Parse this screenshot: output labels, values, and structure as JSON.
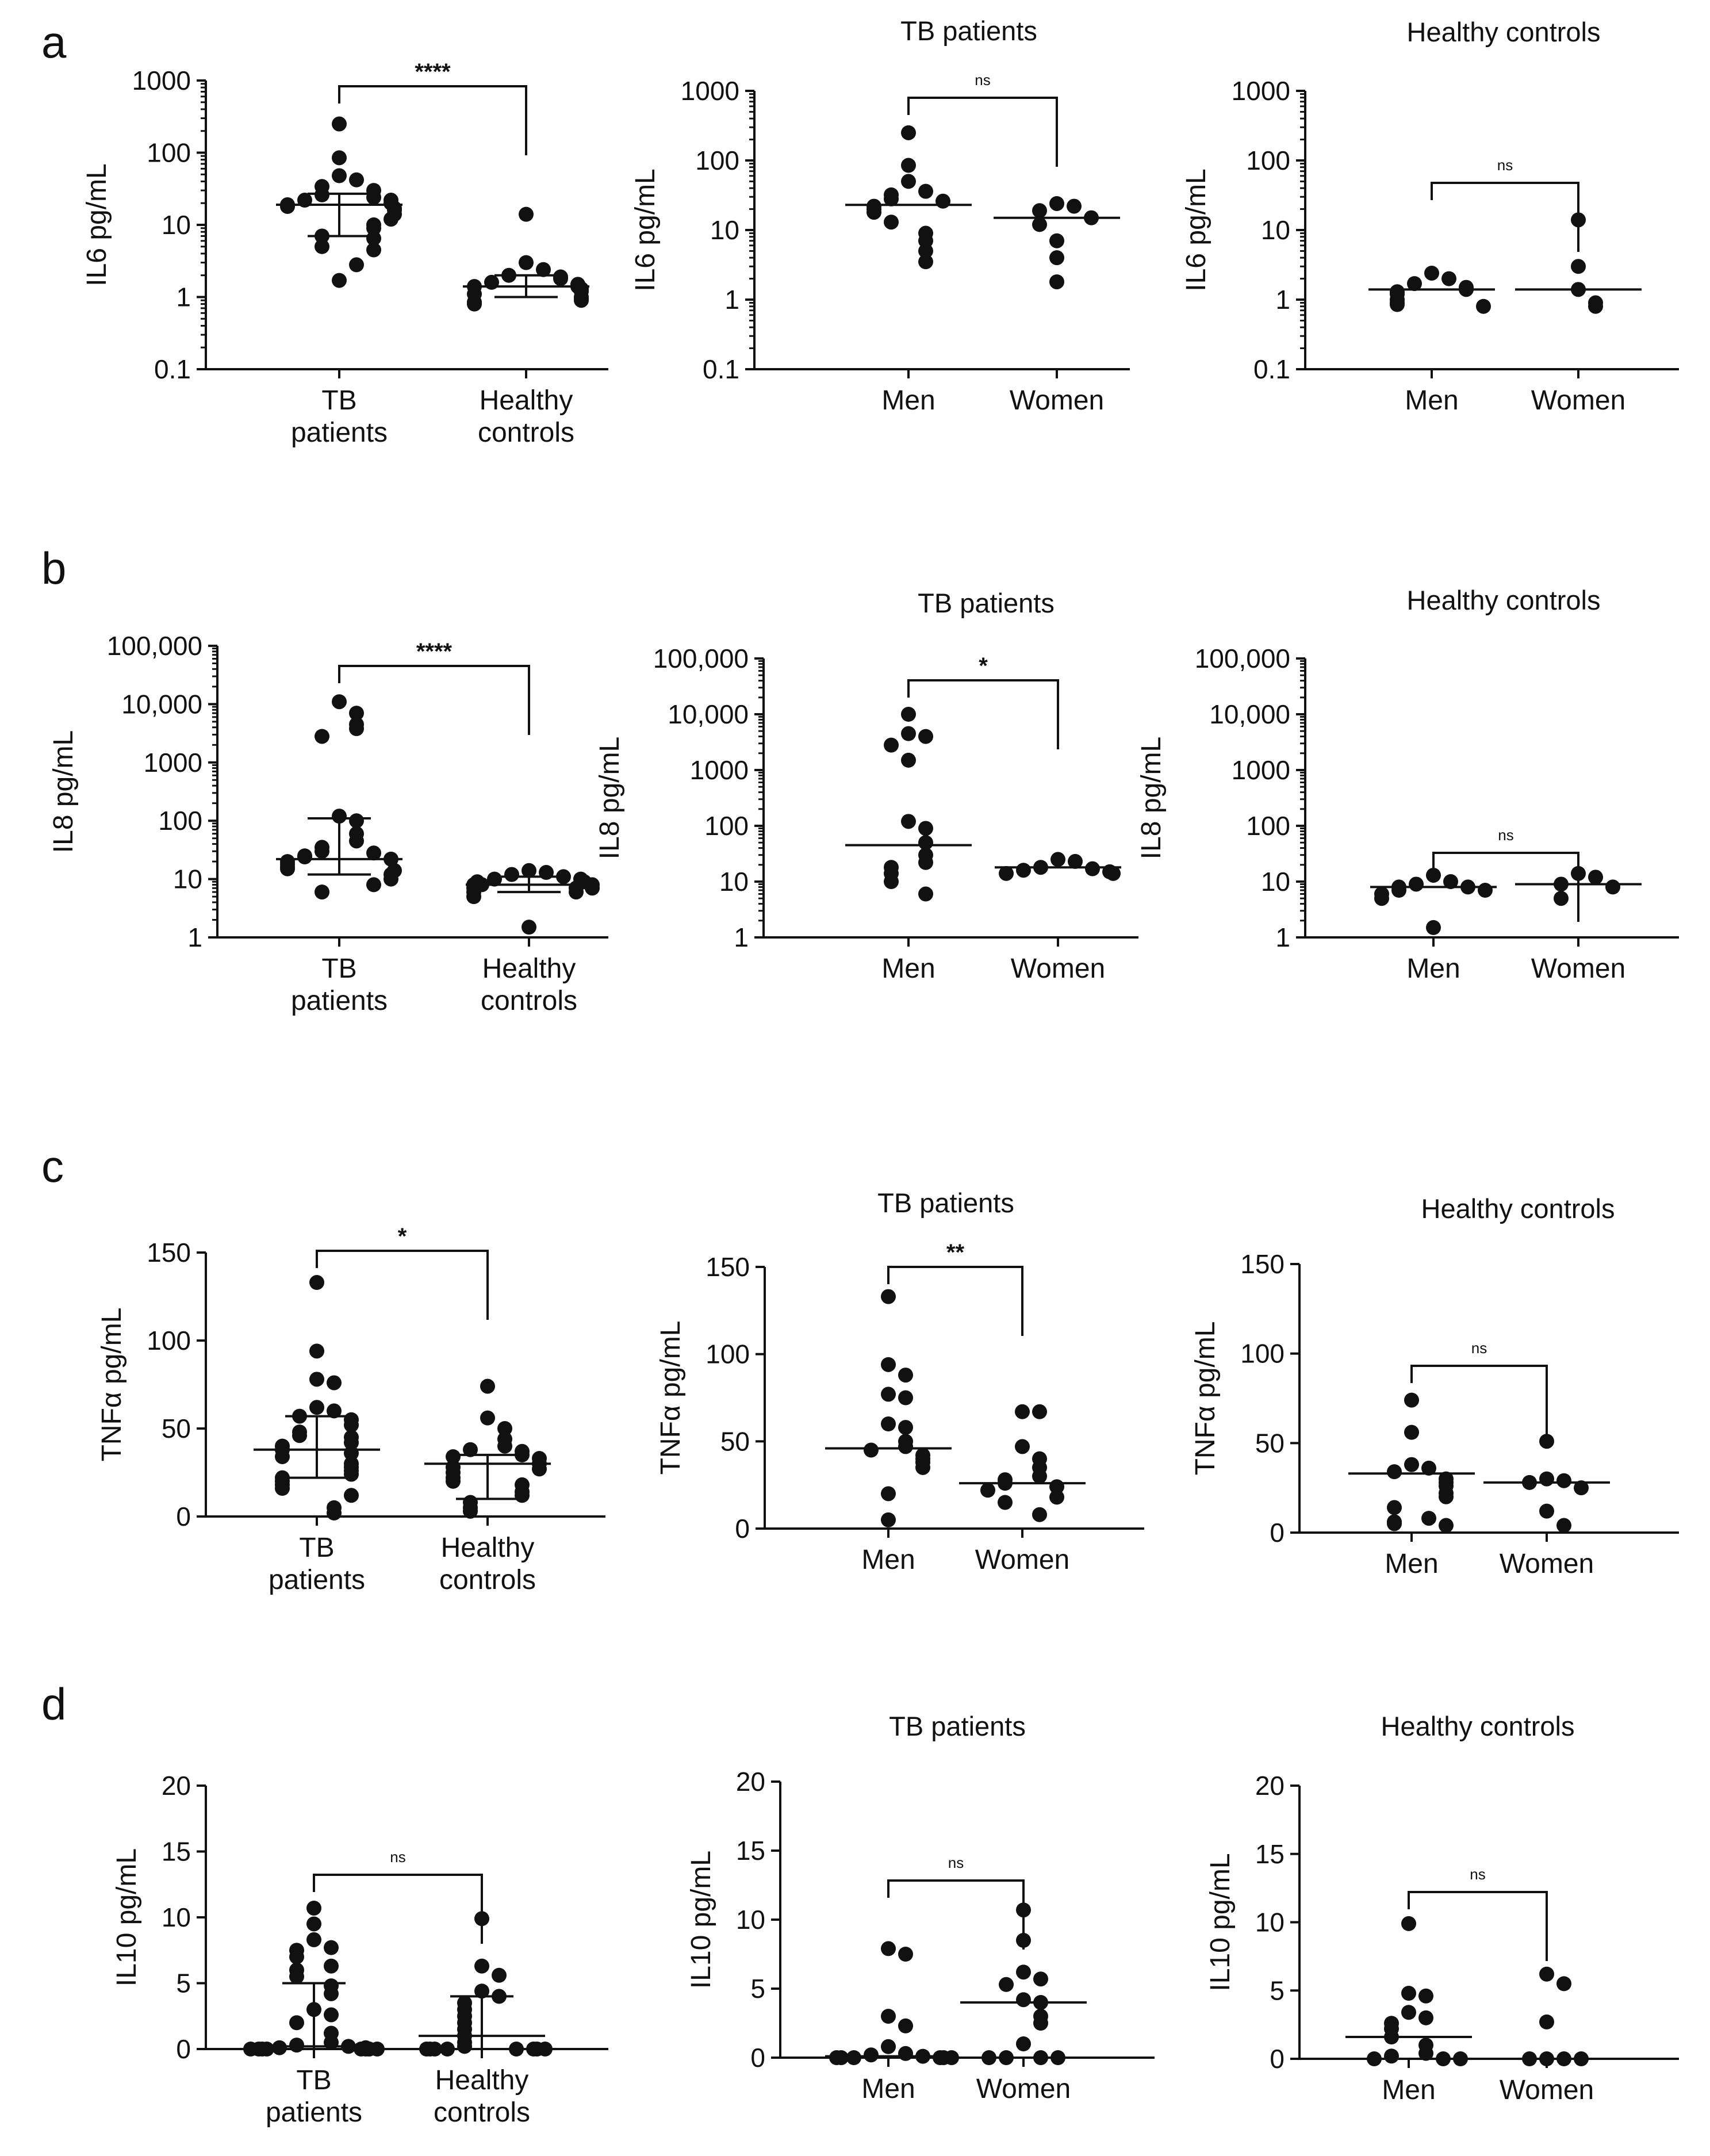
{
  "figure": {
    "background": "#ffffff",
    "ink": "#111111"
  },
  "chart_data": [
    {
      "id": "a1",
      "panel_letter": "a",
      "type": "scatter",
      "title": "",
      "ylabel": "IL6 pg/mL",
      "scale": "log",
      "ylim": [
        0.1,
        1000
      ],
      "yticks": [
        {
          "value": 0.1,
          "label": "0.1"
        },
        {
          "value": 1,
          "label": "1"
        },
        {
          "value": 10,
          "label": "10"
        },
        {
          "value": 100,
          "label": "100"
        },
        {
          "value": 1000,
          "label": "1000"
        }
      ],
      "categories": [
        [
          "TB",
          "patients"
        ],
        [
          "Healthy",
          "controls"
        ]
      ],
      "groups": [
        {
          "values": [
            250,
            85,
            48,
            42,
            34,
            30,
            26,
            24,
            22,
            22,
            20,
            19,
            18,
            17,
            16,
            14,
            12,
            10,
            9,
            7,
            6.5,
            5,
            4.5,
            2.8,
            1.7
          ],
          "median": 19,
          "iqr": [
            7,
            27
          ]
        },
        {
          "values": [
            14,
            3.0,
            2.4,
            2.0,
            1.9,
            1.8,
            1.6,
            1.5,
            1.4,
            1.4,
            1.3,
            1.2,
            1.1,
            1.0,
            0.95,
            0.9,
            0.85,
            0.8
          ],
          "median": 1.4,
          "iqr": [
            1.0,
            2.0
          ]
        }
      ],
      "significance": "****"
    },
    {
      "id": "a2",
      "panel_letter": "",
      "type": "scatter",
      "title": "TB patients",
      "ylabel": "IL6 pg/mL",
      "scale": "log",
      "ylim": [
        0.1,
        1000
      ],
      "yticks": [
        {
          "value": 0.1,
          "label": "0.1"
        },
        {
          "value": 1,
          "label": "1"
        },
        {
          "value": 10,
          "label": "10"
        },
        {
          "value": 100,
          "label": "100"
        },
        {
          "value": 1000,
          "label": "1000"
        }
      ],
      "categories": [
        [
          "Men"
        ],
        [
          "Women"
        ]
      ],
      "groups": [
        {
          "values": [
            250,
            85,
            50,
            36,
            32,
            28,
            26,
            22,
            20,
            18,
            13,
            9,
            7,
            5,
            3.5
          ],
          "median": 23
        },
        {
          "values": [
            24,
            22,
            19,
            15,
            12,
            7,
            4,
            1.8
          ],
          "median": 15
        }
      ],
      "significance": "ns"
    },
    {
      "id": "a3",
      "panel_letter": "",
      "type": "scatter",
      "title": "Healthy controls",
      "ylabel": "IL6 pg/mL",
      "scale": "log",
      "ylim": [
        0.1,
        1000
      ],
      "yticks": [
        {
          "value": 0.1,
          "label": "0.1"
        },
        {
          "value": 1,
          "label": "1"
        },
        {
          "value": 10,
          "label": "10"
        },
        {
          "value": 100,
          "label": "100"
        },
        {
          "value": 1000,
          "label": "1000"
        }
      ],
      "categories": [
        [
          "Men"
        ],
        [
          "Women"
        ]
      ],
      "groups": [
        {
          "values": [
            2.4,
            2.0,
            1.7,
            1.5,
            1.4,
            1.3,
            1.2,
            1.0,
            0.9,
            0.85,
            0.8
          ],
          "median": 1.4
        },
        {
          "values": [
            14,
            3.0,
            1.4,
            0.9,
            0.8
          ],
          "median": 1.4
        }
      ],
      "significance": "ns"
    },
    {
      "id": "b1",
      "panel_letter": "b",
      "type": "scatter",
      "title": "",
      "ylabel": "IL8 pg/mL",
      "scale": "log",
      "ylim": [
        1,
        100000
      ],
      "yticks": [
        {
          "value": 1,
          "label": "1"
        },
        {
          "value": 10,
          "label": "10"
        },
        {
          "value": 100,
          "label": "100"
        },
        {
          "value": 1000,
          "label": "1000"
        },
        {
          "value": 10000,
          "label": "10,000"
        },
        {
          "value": 100000,
          "label": "100,000"
        }
      ],
      "categories": [
        [
          "TB",
          "patients"
        ],
        [
          "Healthy",
          "controls"
        ]
      ],
      "groups": [
        {
          "values": [
            11000,
            7000,
            4500,
            3800,
            2800,
            120,
            100,
            60,
            45,
            35,
            30,
            28,
            25,
            24,
            22,
            20,
            18,
            16,
            15,
            14,
            12,
            10,
            8,
            6
          ],
          "median": 22,
          "iqr": [
            12,
            110
          ]
        },
        {
          "values": [
            14,
            13,
            12,
            11,
            10,
            10,
            9,
            9,
            8,
            8,
            8,
            7,
            7,
            7,
            6,
            6,
            5,
            1.5
          ],
          "median": 8,
          "iqr": [
            6,
            11
          ]
        }
      ],
      "significance": "****"
    },
    {
      "id": "b2",
      "panel_letter": "",
      "type": "scatter",
      "title": "TB patients",
      "ylabel": "IL8 pg/mL",
      "scale": "log",
      "ylim": [
        1,
        100000
      ],
      "yticks": [
        {
          "value": 1,
          "label": "1"
        },
        {
          "value": 10,
          "label": "10"
        },
        {
          "value": 100,
          "label": "100"
        },
        {
          "value": 1000,
          "label": "1000"
        },
        {
          "value": 10000,
          "label": "10,000"
        },
        {
          "value": 100000,
          "label": "100,000"
        }
      ],
      "categories": [
        [
          "Men"
        ],
        [
          "Women"
        ]
      ],
      "groups": [
        {
          "values": [
            10000,
            4500,
            4000,
            2800,
            1500,
            120,
            90,
            50,
            30,
            22,
            18,
            14,
            10,
            6
          ],
          "median": 45
        },
        {
          "values": [
            25,
            23,
            18,
            17,
            16,
            15,
            14,
            14
          ],
          "median": 18
        }
      ],
      "significance": "*"
    },
    {
      "id": "b3",
      "panel_letter": "",
      "type": "scatter",
      "title": "Healthy controls",
      "ylabel": "IL8 pg/mL",
      "scale": "log",
      "ylim": [
        1,
        100000
      ],
      "yticks": [
        {
          "value": 1,
          "label": "1"
        },
        {
          "value": 10,
          "label": "10"
        },
        {
          "value": 100,
          "label": "100"
        },
        {
          "value": 1000,
          "label": "1000"
        },
        {
          "value": 10000,
          "label": "10,000"
        },
        {
          "value": 100000,
          "label": "100,000"
        }
      ],
      "categories": [
        [
          "Men"
        ],
        [
          "Women"
        ]
      ],
      "groups": [
        {
          "values": [
            13,
            10,
            9,
            8,
            8,
            7,
            7,
            6,
            5,
            1.5
          ],
          "median": 8
        },
        {
          "values": [
            14,
            12,
            9,
            8,
            5
          ],
          "median": 9
        }
      ],
      "significance": "ns"
    },
    {
      "id": "c1",
      "panel_letter": "c",
      "type": "scatter",
      "title": "",
      "ylabel": "TNFα pg/mL",
      "scale": "linear",
      "ylim": [
        0,
        150
      ],
      "yticks": [
        {
          "value": 0,
          "label": "0"
        },
        {
          "value": 50,
          "label": "50"
        },
        {
          "value": 100,
          "label": "100"
        },
        {
          "value": 150,
          "label": "150"
        }
      ],
      "categories": [
        [
          "TB",
          "patients"
        ],
        [
          "Healthy",
          "controls"
        ]
      ],
      "groups": [
        {
          "values": [
            133,
            94,
            78,
            76,
            62,
            60,
            57,
            55,
            52,
            48,
            46,
            45,
            42,
            40,
            38,
            36,
            34,
            30,
            28,
            26,
            24,
            22,
            20,
            18,
            16,
            12,
            5,
            2
          ],
          "median": 38,
          "iqr": [
            22,
            57
          ]
        },
        {
          "values": [
            74,
            56,
            50,
            44,
            40,
            38,
            37,
            35,
            34,
            33,
            30,
            28,
            27,
            25,
            22,
            20,
            18,
            14,
            12,
            8,
            5,
            3
          ],
          "median": 30,
          "iqr": [
            10,
            35
          ]
        }
      ],
      "significance": "*"
    },
    {
      "id": "c2",
      "panel_letter": "",
      "type": "scatter",
      "title": "TB patients",
      "ylabel": "TNFα pg/mL",
      "scale": "linear",
      "ylim": [
        0,
        150
      ],
      "yticks": [
        {
          "value": 0,
          "label": "0"
        },
        {
          "value": 50,
          "label": "50"
        },
        {
          "value": 100,
          "label": "100"
        },
        {
          "value": 150,
          "label": "150"
        }
      ],
      "categories": [
        [
          "Men"
        ],
        [
          "Women"
        ]
      ],
      "groups": [
        {
          "values": [
            133,
            94,
            88,
            77,
            75,
            60,
            58,
            50,
            47,
            45,
            42,
            40,
            38,
            35,
            20,
            5
          ],
          "median": 46
        },
        {
          "values": [
            67,
            67,
            47,
            40,
            35,
            30,
            28,
            26,
            24,
            22,
            18,
            15,
            8
          ],
          "median": 26
        }
      ],
      "significance": "**"
    },
    {
      "id": "c3",
      "panel_letter": "",
      "type": "scatter",
      "title": "Healthy controls",
      "ylabel": "TNFα pg/mL",
      "scale": "linear",
      "ylim": [
        0,
        150
      ],
      "yticks": [
        {
          "value": 0,
          "label": "0"
        },
        {
          "value": 50,
          "label": "50"
        },
        {
          "value": 100,
          "label": "100"
        },
        {
          "value": 150,
          "label": "150"
        }
      ],
      "categories": [
        [
          "Men"
        ],
        [
          "Women"
        ]
      ],
      "groups": [
        {
          "values": [
            74,
            56,
            38,
            36,
            34,
            30,
            28,
            26,
            22,
            20,
            14,
            8,
            6,
            5,
            4
          ],
          "median": 33
        },
        {
          "values": [
            51,
            30,
            29,
            28,
            25,
            12,
            4
          ],
          "median": 28
        }
      ],
      "significance": "ns"
    },
    {
      "id": "d1",
      "panel_letter": "d",
      "type": "scatter",
      "title": "",
      "ylabel": "IL10 pg/mL",
      "scale": "linear",
      "ylim": [
        0,
        20
      ],
      "yticks": [
        {
          "value": 0,
          "label": "0"
        },
        {
          "value": 5,
          "label": "5"
        },
        {
          "value": 10,
          "label": "10"
        },
        {
          "value": 15,
          "label": "15"
        },
        {
          "value": 20,
          "label": "20"
        }
      ],
      "categories": [
        [
          "TB",
          "patients"
        ],
        [
          "Healthy",
          "controls"
        ]
      ],
      "groups": [
        {
          "values": [
            10.7,
            9.5,
            8.3,
            7.7,
            7.5,
            7,
            6.3,
            6,
            5.5,
            4.8,
            4.2,
            3,
            2.6,
            2,
            1.2,
            0.5,
            0.3,
            0.2,
            0.1,
            0.1,
            0,
            0,
            0,
            0,
            0,
            0,
            0,
            0,
            0
          ],
          "median": 0.2,
          "iqr": [
            0,
            5
          ]
        },
        {
          "values": [
            9.9,
            6.3,
            5.6,
            4.4,
            4,
            3.5,
            3,
            2.5,
            2,
            1.5,
            1,
            0.5,
            0.2,
            0,
            0,
            0,
            0,
            0,
            0,
            0,
            0
          ],
          "median": 1,
          "iqr": [
            0,
            4
          ]
        }
      ],
      "significance": "ns"
    },
    {
      "id": "d2",
      "panel_letter": "",
      "type": "scatter",
      "title": "TB patients",
      "ylabel": "IL10 pg/mL",
      "scale": "linear",
      "ylim": [
        0,
        20
      ],
      "yticks": [
        {
          "value": 0,
          "label": "0"
        },
        {
          "value": 5,
          "label": "5"
        },
        {
          "value": 10,
          "label": "10"
        },
        {
          "value": 15,
          "label": "15"
        },
        {
          "value": 20,
          "label": "20"
        }
      ],
      "categories": [
        [
          "Men"
        ],
        [
          "Women"
        ]
      ],
      "groups": [
        {
          "values": [
            7.9,
            7.5,
            3,
            2.3,
            0.8,
            0.3,
            0.2,
            0.1,
            0,
            0,
            0,
            0,
            0,
            0
          ],
          "median": 0.1
        },
        {
          "values": [
            10.7,
            8.5,
            6.2,
            5.7,
            5.3,
            4.2,
            4,
            3,
            2.5,
            1,
            0,
            0,
            0,
            0
          ],
          "median": 4
        }
      ],
      "significance": "ns"
    },
    {
      "id": "d3",
      "panel_letter": "",
      "type": "scatter",
      "title": "Healthy controls",
      "ylabel": "IL10 pg/mL",
      "scale": "linear",
      "ylim": [
        0,
        20
      ],
      "yticks": [
        {
          "value": 0,
          "label": "0"
        },
        {
          "value": 5,
          "label": "5"
        },
        {
          "value": 10,
          "label": "10"
        },
        {
          "value": 15,
          "label": "15"
        },
        {
          "value": 20,
          "label": "20"
        }
      ],
      "categories": [
        [
          "Men"
        ],
        [
          "Women"
        ]
      ],
      "groups": [
        {
          "values": [
            9.9,
            4.8,
            4.6,
            3.4,
            3,
            2.6,
            2.2,
            1.6,
            1,
            0.4,
            0.2,
            0,
            0,
            0
          ],
          "median": 1.6
        },
        {
          "values": [
            6.2,
            5.5,
            2.7,
            0,
            0,
            0,
            0
          ],
          "median": 0
        }
      ],
      "significance": "ns"
    }
  ]
}
